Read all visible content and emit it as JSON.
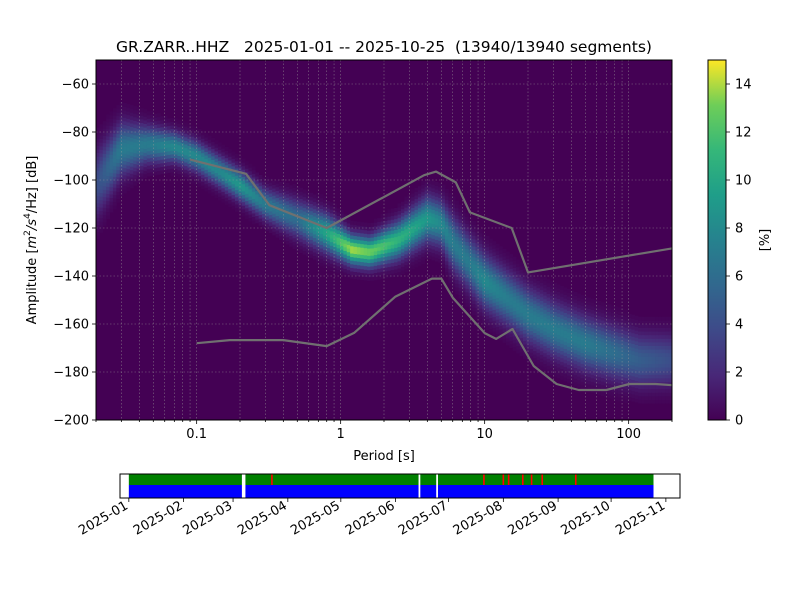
{
  "chart_data": [
    {
      "type": "heatmap",
      "title": "GR.ZARR..HHZ   2025-01-01 -- 2025-10-25  (13940/13940 segments)",
      "xlabel": "Period [s]",
      "ylabel": {
        "pre": "Amplitude [",
        "m": "m",
        "e1": "2",
        "mid": "/s",
        "e2": "4",
        "end": "/Hz] [dB]"
      },
      "x_scale": "log",
      "xlim": [
        0.02,
        200
      ],
      "ylim": [
        -200,
        -50
      ],
      "x_ticks": [
        {
          "value": 0.1,
          "label": "0.1"
        },
        {
          "value": 1,
          "label": "1"
        },
        {
          "value": 10,
          "label": "10"
        },
        {
          "value": 100,
          "label": "100"
        }
      ],
      "y_ticks": [
        {
          "value": -60,
          "label": "−60"
        },
        {
          "value": -80,
          "label": "−80"
        },
        {
          "value": -100,
          "label": "−100"
        },
        {
          "value": -120,
          "label": "−120"
        },
        {
          "value": -140,
          "label": "−140"
        },
        {
          "value": -160,
          "label": "−160"
        },
        {
          "value": -180,
          "label": "−180"
        },
        {
          "value": -200,
          "label": "−200"
        }
      ],
      "grid": true,
      "colormap": "viridis",
      "colorbar": {
        "label": "[%]",
        "range": [
          0,
          15
        ],
        "ticks": [
          {
            "value": 0,
            "label": "0"
          },
          {
            "value": 2,
            "label": "2"
          },
          {
            "value": 4,
            "label": "4"
          },
          {
            "value": 6,
            "label": "6"
          },
          {
            "value": 8,
            "label": "8"
          },
          {
            "value": 10,
            "label": "10"
          },
          {
            "value": 12,
            "label": "12"
          },
          {
            "value": 14,
            "label": "14"
          }
        ]
      },
      "density_ridge": {
        "period": [
          0.02,
          0.03,
          0.045,
          0.07,
          0.1,
          0.15,
          0.2,
          0.3,
          0.5,
          0.8,
          1.2,
          1.6,
          2.5,
          4,
          5,
          6,
          8,
          10,
          15,
          20,
          30,
          50,
          80,
          120,
          200
        ],
        "peak_db": [
          -102,
          -87,
          -85,
          -86,
          -90,
          -97,
          -102,
          -110,
          -116,
          -122,
          -129,
          -130,
          -125,
          -116,
          -118,
          -126,
          -135,
          -142,
          -150,
          -156,
          -162,
          -168,
          -172,
          -175,
          -175
        ],
        "width_db": [
          9,
          7,
          5,
          4,
          4,
          4,
          4,
          4,
          5,
          5,
          4,
          4,
          5,
          6,
          6,
          7,
          7,
          7,
          7,
          7,
          7,
          7,
          7,
          7,
          7
        ],
        "peak_percent": [
          4,
          7,
          7,
          8,
          8,
          8,
          9,
          7,
          6,
          10,
          14,
          13,
          11,
          9,
          8,
          7,
          7,
          8,
          7,
          7,
          7,
          7,
          6,
          5,
          4
        ]
      },
      "noise_models": [
        {
          "period": [
            0.1,
            0.17,
            0.4,
            0.8,
            1.24,
            2.4,
            4.3,
            5,
            6,
            10,
            12,
            15.6,
            21.9,
            31.6,
            45,
            70,
            101,
            154,
            200
          ],
          "db": [
            -168,
            -166.7,
            -166.7,
            -169.2,
            -163.7,
            -148.6,
            -141.1,
            -141.1,
            -149.0,
            -163.8,
            -166.2,
            -162.1,
            -177.5,
            -185,
            -187.5,
            -187.5,
            -185,
            -185,
            -185.5
          ]
        },
        {
          "period": [
            0.09,
            0.22,
            0.32,
            0.8,
            3.8,
            4.6,
            6.3,
            7.9,
            15.4,
            20,
            200
          ],
          "db": [
            -91.5,
            -97.4,
            -110.5,
            -120,
            -98.0,
            -96.5,
            -101.0,
            -113.5,
            -120.0,
            -138.5,
            -128.5
          ]
        }
      ],
      "noise_model_color": "#707070"
    },
    {
      "type": "timeline",
      "x_range": [
        "2024-12-27",
        "2025-11-09"
      ],
      "data_range": [
        "2025-01-01",
        "2025-10-25"
      ],
      "x_ticks": [
        "2025-01",
        "2025-02",
        "2025-03",
        "2025-04",
        "2025-05",
        "2025-06",
        "2025-07",
        "2025-08",
        "2025-09",
        "2025-10",
        "2025-11"
      ],
      "gaps": [
        [
          "2025-03-06",
          "2025-03-08"
        ],
        [
          "2025-06-14",
          "2025-06-15"
        ],
        [
          "2025-06-24",
          "2025-06-25"
        ]
      ],
      "markers": [
        "2025-03-23",
        "2025-07-21",
        "2025-08-01",
        "2025-08-04",
        "2025-08-12",
        "2025-08-17",
        "2025-08-23",
        "2025-09-11"
      ],
      "colors": {
        "top": "#008000",
        "bottom": "#0000ff",
        "marker": "#ff0000"
      }
    }
  ]
}
